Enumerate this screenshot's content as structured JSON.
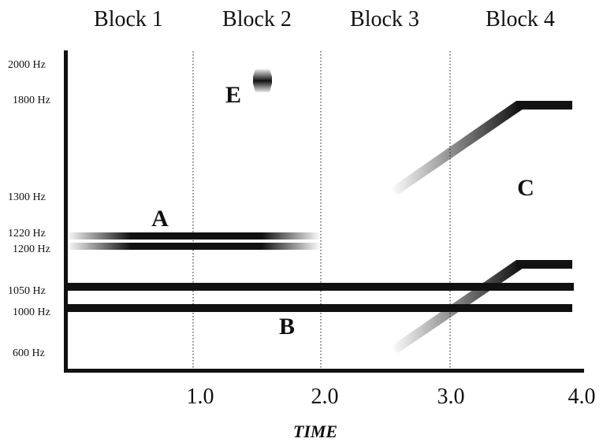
{
  "blocks": [
    "Block 1",
    "Block 2",
    "Block 3",
    "Block 4"
  ],
  "frequency_labels": [
    "2000 Hz",
    "1800 Hz",
    "1300 Hz",
    "1220 Hz",
    "1200 Hz",
    "1050 Hz",
    "1000 Hz",
    "600 Hz"
  ],
  "time_ticks": [
    "1.0",
    "2.0",
    "3.0",
    "4.0"
  ],
  "x_axis_title": "TIME",
  "stream_labels": [
    "A",
    "B",
    "C",
    "E"
  ],
  "colors": {
    "ink": "#111111",
    "background": "#ffffff"
  }
}
